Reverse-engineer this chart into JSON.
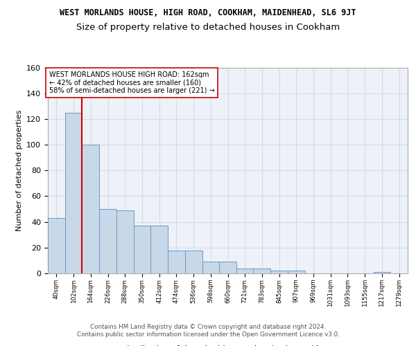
{
  "title": "WEST MORLANDS HOUSE, HIGH ROAD, COOKHAM, MAIDENHEAD, SL6 9JT",
  "subtitle": "Size of property relative to detached houses in Cookham",
  "xlabel": "Distribution of detached houses by size in Cookham",
  "ylabel": "Number of detached properties",
  "bin_labels": [
    "40sqm",
    "102sqm",
    "164sqm",
    "226sqm",
    "288sqm",
    "350sqm",
    "412sqm",
    "474sqm",
    "536sqm",
    "598sqm",
    "660sqm",
    "721sqm",
    "783sqm",
    "845sqm",
    "907sqm",
    "969sqm",
    "1031sqm",
    "1093sqm",
    "1155sqm",
    "1217sqm",
    "1279sqm"
  ],
  "bin_edges": [
    40,
    102,
    164,
    226,
    288,
    350,
    412,
    474,
    536,
    598,
    660,
    721,
    783,
    845,
    907,
    969,
    1031,
    1093,
    1155,
    1217,
    1279
  ],
  "bar_heights": [
    43,
    125,
    100,
    50,
    49,
    37,
    37,
    18,
    18,
    9,
    9,
    4,
    4,
    2,
    2,
    0,
    0,
    0,
    0,
    1,
    0
  ],
  "bar_color": "#c8d8e8",
  "bar_edge_color": "#6699cc",
  "grid_color": "#d0dce8",
  "bg_color": "#eef2f8",
  "property_value": 162,
  "red_line_color": "#cc0000",
  "annotation_text": "WEST MORLANDS HOUSE HIGH ROAD: 162sqm\n← 42% of detached houses are smaller (160)\n58% of semi-detached houses are larger (221) →",
  "annotation_box_color": "#ffffff",
  "annotation_box_edge_color": "#cc0000",
  "ylim": [
    0,
    160
  ],
  "footer_text": "Contains HM Land Registry data © Crown copyright and database right 2024.\nContains public sector information licensed under the Open Government Licence v3.0.",
  "title_fontsize": 8.5,
  "subtitle_fontsize": 9.5
}
